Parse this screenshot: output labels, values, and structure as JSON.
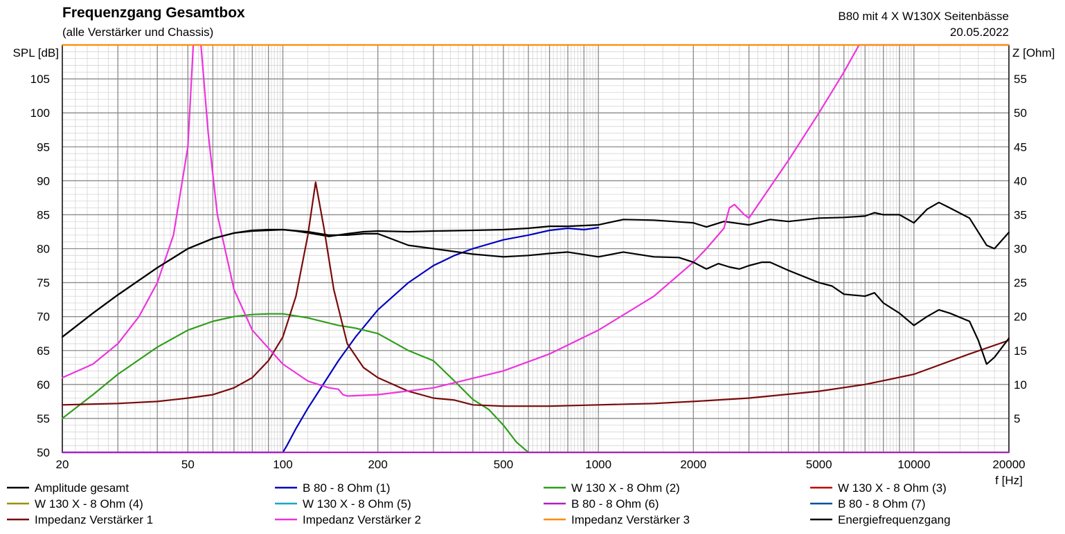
{
  "chart_data": {
    "type": "line",
    "title": "Frequenzgang Gesamtbox",
    "subtitle": "(alle Verstärker und Chassis)",
    "annotation_right_1": "B80 mit 4 X W130X Seitenbässe",
    "annotation_right_2": "20.05.2022",
    "xlabel": "f [Hz]",
    "ylabel_left": "SPL [dB]",
    "ylabel_right": "Z [Ohm]",
    "x_scale": "log",
    "xlim": [
      20,
      20000
    ],
    "ylim_left": [
      50,
      110
    ],
    "ylim_right": [
      0,
      60
    ],
    "x_ticks": [
      20,
      50,
      100,
      200,
      500,
      1000,
      2000,
      5000,
      10000,
      20000
    ],
    "x_tick_labels": [
      "20",
      "50",
      "100",
      "200",
      "500",
      "1000",
      "2000",
      "5000",
      "10000",
      "20000"
    ],
    "y_ticks_left": [
      50,
      55,
      60,
      65,
      70,
      75,
      80,
      85,
      90,
      95,
      100,
      105
    ],
    "y_ticks_left_labels": [
      "50",
      "55",
      "60",
      "65",
      "70",
      "75",
      "80",
      "85",
      "90",
      "95",
      "100",
      "105"
    ],
    "y_ticks_right": [
      5,
      10,
      15,
      20,
      25,
      30,
      35,
      40,
      45,
      50,
      55
    ],
    "y_ticks_right_labels": [
      "5",
      "10",
      "15",
      "20",
      "25",
      "30",
      "35",
      "40",
      "45",
      "50",
      "55"
    ],
    "grid": true,
    "legend_position": "bottom",
    "series": [
      {
        "name": "Amplitude gesamt",
        "color": "#000000",
        "axis": "left",
        "x": [
          20,
          25,
          30,
          40,
          50,
          60,
          70,
          80,
          90,
          100,
          110,
          125,
          140,
          160,
          180,
          200,
          250,
          300,
          400,
          500,
          600,
          700,
          800,
          1000,
          1200,
          1500,
          2000,
          2200,
          2500,
          3000,
          3500,
          4000,
          5000,
          6000,
          7000,
          7500,
          8000,
          9000,
          10000,
          11000,
          12000,
          13000,
          15000,
          17000,
          18000,
          20000
        ],
        "y": [
          67,
          70.5,
          73.2,
          77.2,
          80,
          81.5,
          82.3,
          82.7,
          82.8,
          82.8,
          82.6,
          82.2,
          81.8,
          82.2,
          82.5,
          82.6,
          82.5,
          82.6,
          82.7,
          82.8,
          83,
          83.3,
          83.3,
          83.5,
          84.3,
          84.2,
          83.8,
          83.2,
          84,
          83.5,
          84.3,
          84,
          84.5,
          84.6,
          84.8,
          85.3,
          85,
          85,
          83.8,
          85.8,
          86.8,
          86,
          84.5,
          80.5,
          80,
          82.4
        ]
      },
      {
        "name": "B 80 - 8 Ohm (1)",
        "color": "#0000c0",
        "axis": "left",
        "x": [
          20,
          100,
          103,
          110,
          120,
          130,
          150,
          170,
          200,
          250,
          300,
          350,
          400,
          500,
          600,
          700,
          800,
          900,
          1000
        ],
        "y": [
          50,
          50,
          51,
          53.5,
          56.5,
          59,
          63.5,
          67,
          71,
          75,
          77.5,
          79,
          80,
          81.3,
          82,
          82.7,
          83,
          82.8,
          83.1
        ]
      },
      {
        "name": "W 130 X - 8 Ohm (2)",
        "color": "#2e9e1a",
        "axis": "left",
        "x": [
          20,
          25,
          30,
          40,
          50,
          60,
          70,
          80,
          90,
          100,
          120,
          150,
          170,
          200,
          250,
          300,
          350,
          400,
          450,
          500,
          550,
          600,
          2000,
          20000
        ],
        "y": [
          55,
          58.5,
          61.5,
          65.5,
          68,
          69.3,
          70,
          70.3,
          70.4,
          70.4,
          69.8,
          68.7,
          68.3,
          67.5,
          65,
          63.5,
          60.5,
          57.8,
          56.3,
          54,
          51.5,
          50,
          50,
          50
        ]
      },
      {
        "name": "W 130 X - 8 Ohm (3)",
        "color": "#c00000",
        "axis": "left",
        "x": [],
        "y": []
      },
      {
        "name": "W 130 X - 8 Ohm (4)",
        "color": "#a08c00",
        "axis": "left",
        "x": [],
        "y": []
      },
      {
        "name": "W 130 X - 8 Ohm (5)",
        "color": "#1aa6c6",
        "axis": "left",
        "x": [],
        "y": []
      },
      {
        "name": "B 80 - 8 Ohm (6)",
        "color": "#b020c0",
        "axis": "left",
        "x": [
          20,
          20000
        ],
        "y": [
          50,
          50
        ]
      },
      {
        "name": "B 80 - 8 Ohm (7)",
        "color": "#0050a0",
        "axis": "left",
        "x": [],
        "y": []
      },
      {
        "name": "Impedanz Verstärker 1",
        "color": "#7a0a0a",
        "axis": "right",
        "x": [
          20,
          30,
          40,
          50,
          60,
          70,
          80,
          90,
          100,
          110,
          120,
          127,
          135,
          145,
          160,
          180,
          200,
          250,
          300,
          350,
          400,
          500,
          700,
          1000,
          1500,
          2000,
          3000,
          5000,
          7000,
          10000,
          15000,
          20000
        ],
        "y": [
          7,
          7.2,
          7.5,
          8,
          8.5,
          9.5,
          11,
          13.5,
          17,
          23,
          32,
          39.8,
          33,
          24,
          16,
          12.5,
          11,
          9,
          8,
          7.7,
          7,
          6.8,
          6.8,
          7,
          7.2,
          7.5,
          8,
          9,
          10,
          11.5,
          14.5,
          16.5
        ]
      },
      {
        "name": "Impedanz Verstärker 2",
        "color": "#ee33dd",
        "axis": "right",
        "x": [
          20,
          25,
          30,
          35,
          40,
          45,
          50,
          52,
          55,
          58,
          62,
          70,
          80,
          100,
          120,
          140,
          150,
          155,
          160,
          200,
          300,
          500,
          700,
          1000,
          1500,
          2000,
          2200,
          2500,
          2600,
          2700,
          2900,
          3000,
          4000,
          5000,
          6000,
          6700,
          20000
        ],
        "y": [
          11,
          13,
          16,
          20,
          25,
          32,
          45,
          60,
          60,
          47,
          35,
          24,
          18,
          13,
          10.5,
          9.5,
          9.3,
          8.5,
          8.3,
          8.5,
          9.5,
          12,
          14.5,
          18,
          23,
          28,
          30,
          33,
          36,
          36.5,
          35,
          34.5,
          43,
          50,
          56,
          60,
          60
        ]
      },
      {
        "name": "Impedanz Verstärker 3",
        "color": "#ff8c00",
        "axis": "right",
        "x": [
          20,
          20000
        ],
        "y": [
          60,
          60
        ]
      },
      {
        "name": "Energiefrequenzgang",
        "color": "#000000",
        "axis": "left",
        "x": [
          20,
          25,
          30,
          40,
          50,
          60,
          70,
          80,
          90,
          100,
          120,
          140,
          160,
          180,
          200,
          250,
          300,
          400,
          500,
          600,
          700,
          800,
          1000,
          1200,
          1500,
          1800,
          2000,
          2200,
          2400,
          2600,
          2800,
          3000,
          3300,
          3500,
          4000,
          5000,
          5500,
          6000,
          7000,
          7500,
          8000,
          9000,
          10000,
          11000,
          12000,
          13000,
          15000,
          16000,
          17000,
          18000,
          20000
        ],
        "y": [
          67,
          70.5,
          73.2,
          77.2,
          80,
          81.5,
          82.3,
          82.6,
          82.7,
          82.8,
          82.5,
          82,
          82,
          82.2,
          82.2,
          80.5,
          80,
          79.2,
          78.8,
          79,
          79.3,
          79.5,
          78.8,
          79.5,
          78.8,
          78.7,
          78,
          77,
          77.8,
          77.3,
          77,
          77.5,
          78,
          78,
          76.8,
          75,
          74.5,
          73.3,
          73,
          73.5,
          72,
          70.5,
          68.7,
          70,
          71,
          70.5,
          69.3,
          66.5,
          63,
          64,
          66.8
        ]
      }
    ],
    "legend_entries": [
      "Amplitude gesamt",
      "B 80 - 8 Ohm (1)",
      "W 130 X - 8 Ohm (2)",
      "W 130 X - 8 Ohm (3)",
      "W 130 X - 8 Ohm (4)",
      "W 130 X - 8 Ohm (5)",
      "B 80 - 8 Ohm (6)",
      "B 80 - 8 Ohm (7)",
      "Impedanz Verstärker 1",
      "Impedanz Verstärker 2",
      "Impedanz Verstärker 3",
      "Energiefrequenzgang"
    ]
  }
}
